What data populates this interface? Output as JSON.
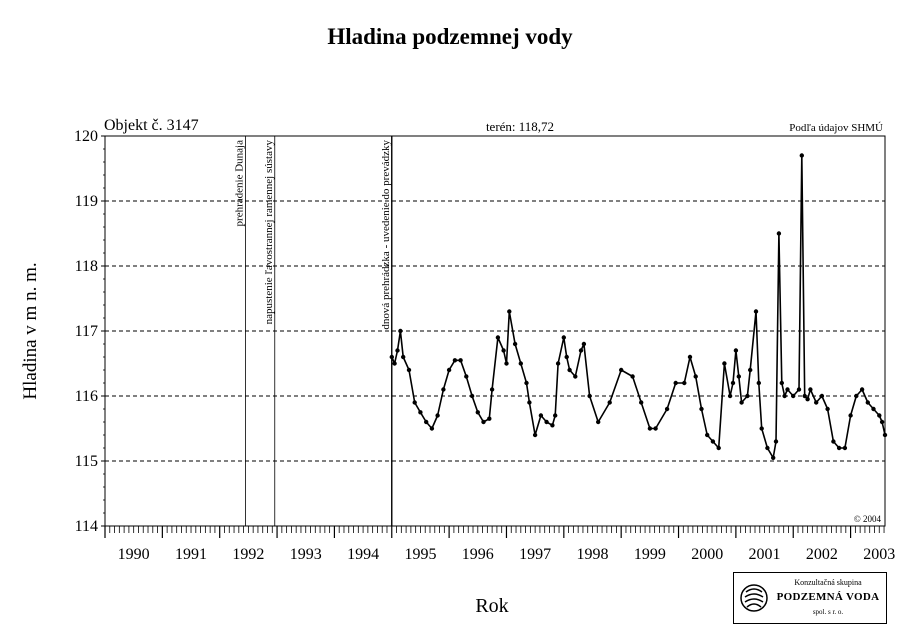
{
  "title": "Hladina podzemnej vody",
  "chart_data": {
    "type": "scatter",
    "title": "Hladina podzemnej vody",
    "xlabel": "Rok",
    "ylabel": "Hladina v m n. m.",
    "xlim": [
      1990,
      2003.6
    ],
    "ylim": [
      114,
      120
    ],
    "x_tick_labels": [
      "1990",
      "1991",
      "1992",
      "1993",
      "1994",
      "1995",
      "1996",
      "1997",
      "1998",
      "1999",
      "2000",
      "2001",
      "2002",
      "2003"
    ],
    "y_tick_labels": [
      "114",
      "115",
      "116",
      "117",
      "118",
      "119",
      "120"
    ],
    "grid": "horizontal dashed",
    "annotations": {
      "object": "Objekt č. 3147",
      "terrain": "terén: 118,72",
      "source": "Podľa údajov SHMÚ",
      "copyright": "© 2004"
    },
    "events": [
      {
        "year": 1992.45,
        "label": "prehradenie Dunaja"
      },
      {
        "year": 1992.96,
        "label": "napustenie ľavostrannej ramennej sústavy"
      },
      {
        "year": 1995.0,
        "label": "dnová prehrádzka - uvedenie do prevádzky"
      }
    ],
    "series": [
      {
        "x": [
          1995.0,
          1995.05,
          1995.1,
          1995.15,
          1995.2,
          1995.3,
          1995.4,
          1995.5,
          1995.6,
          1995.7,
          1995.8,
          1995.9,
          1996.0,
          1996.1,
          1996.2,
          1996.3,
          1996.4,
          1996.5,
          1996.6,
          1996.7,
          1996.75,
          1996.85,
          1996.95,
          1997.0,
          1997.05,
          1997.15,
          1997.25,
          1997.35,
          1997.4,
          1997.5,
          1997.6,
          1997.7,
          1997.8,
          1997.85,
          1997.9,
          1998.0,
          1998.05,
          1998.1,
          1998.2,
          1998.3,
          1998.35,
          1998.45,
          1998.6,
          1998.8,
          1999.0,
          1999.2,
          1999.35,
          1999.5,
          1999.6,
          1999.8,
          1999.95,
          2000.1,
          2000.2,
          2000.3,
          2000.4,
          2000.5,
          2000.6,
          2000.7,
          2000.8,
          2000.9,
          2000.95,
          2001.0,
          2001.05,
          2001.1,
          2001.2,
          2001.25,
          2001.35,
          2001.4,
          2001.45,
          2001.55,
          2001.65,
          2001.7,
          2001.75,
          2001.8,
          2001.85,
          2001.9,
          2002.0,
          2002.1,
          2002.15,
          2002.2,
          2002.25,
          2002.3,
          2002.4,
          2002.5,
          2002.6,
          2002.7,
          2002.8,
          2002.9,
          2003.0,
          2003.1,
          2003.2,
          2003.3,
          2003.4,
          2003.5,
          2003.55,
          2003.6
        ],
        "y": [
          116.6,
          116.5,
          116.7,
          117.0,
          116.6,
          116.4,
          115.9,
          115.75,
          115.6,
          115.5,
          115.7,
          116.1,
          116.4,
          116.55,
          116.55,
          116.3,
          116.0,
          115.75,
          115.6,
          115.65,
          116.1,
          116.9,
          116.7,
          116.5,
          117.3,
          116.8,
          116.5,
          116.2,
          115.9,
          115.4,
          115.7,
          115.6,
          115.55,
          115.7,
          116.5,
          116.9,
          116.6,
          116.4,
          116.3,
          116.7,
          116.8,
          116.0,
          115.6,
          115.9,
          116.4,
          116.3,
          115.9,
          115.5,
          115.5,
          115.8,
          116.2,
          116.2,
          116.6,
          116.3,
          115.8,
          115.4,
          115.3,
          115.2,
          116.5,
          116.0,
          116.2,
          116.7,
          116.3,
          115.9,
          116.0,
          116.4,
          117.3,
          116.2,
          115.5,
          115.2,
          115.05,
          115.3,
          118.5,
          116.2,
          116.0,
          116.1,
          116.0,
          116.1,
          119.7,
          116.0,
          115.95,
          116.1,
          115.9,
          116.0,
          115.8,
          115.3,
          115.2,
          115.2,
          115.7,
          116.0,
          116.1,
          115.9,
          115.8,
          115.7,
          115.6,
          115.4
        ]
      }
    ]
  },
  "logo": {
    "line1": "Konzultačná skupina",
    "line2": "PODZEMNÁ VODA",
    "line3": "spol. s r. o."
  }
}
